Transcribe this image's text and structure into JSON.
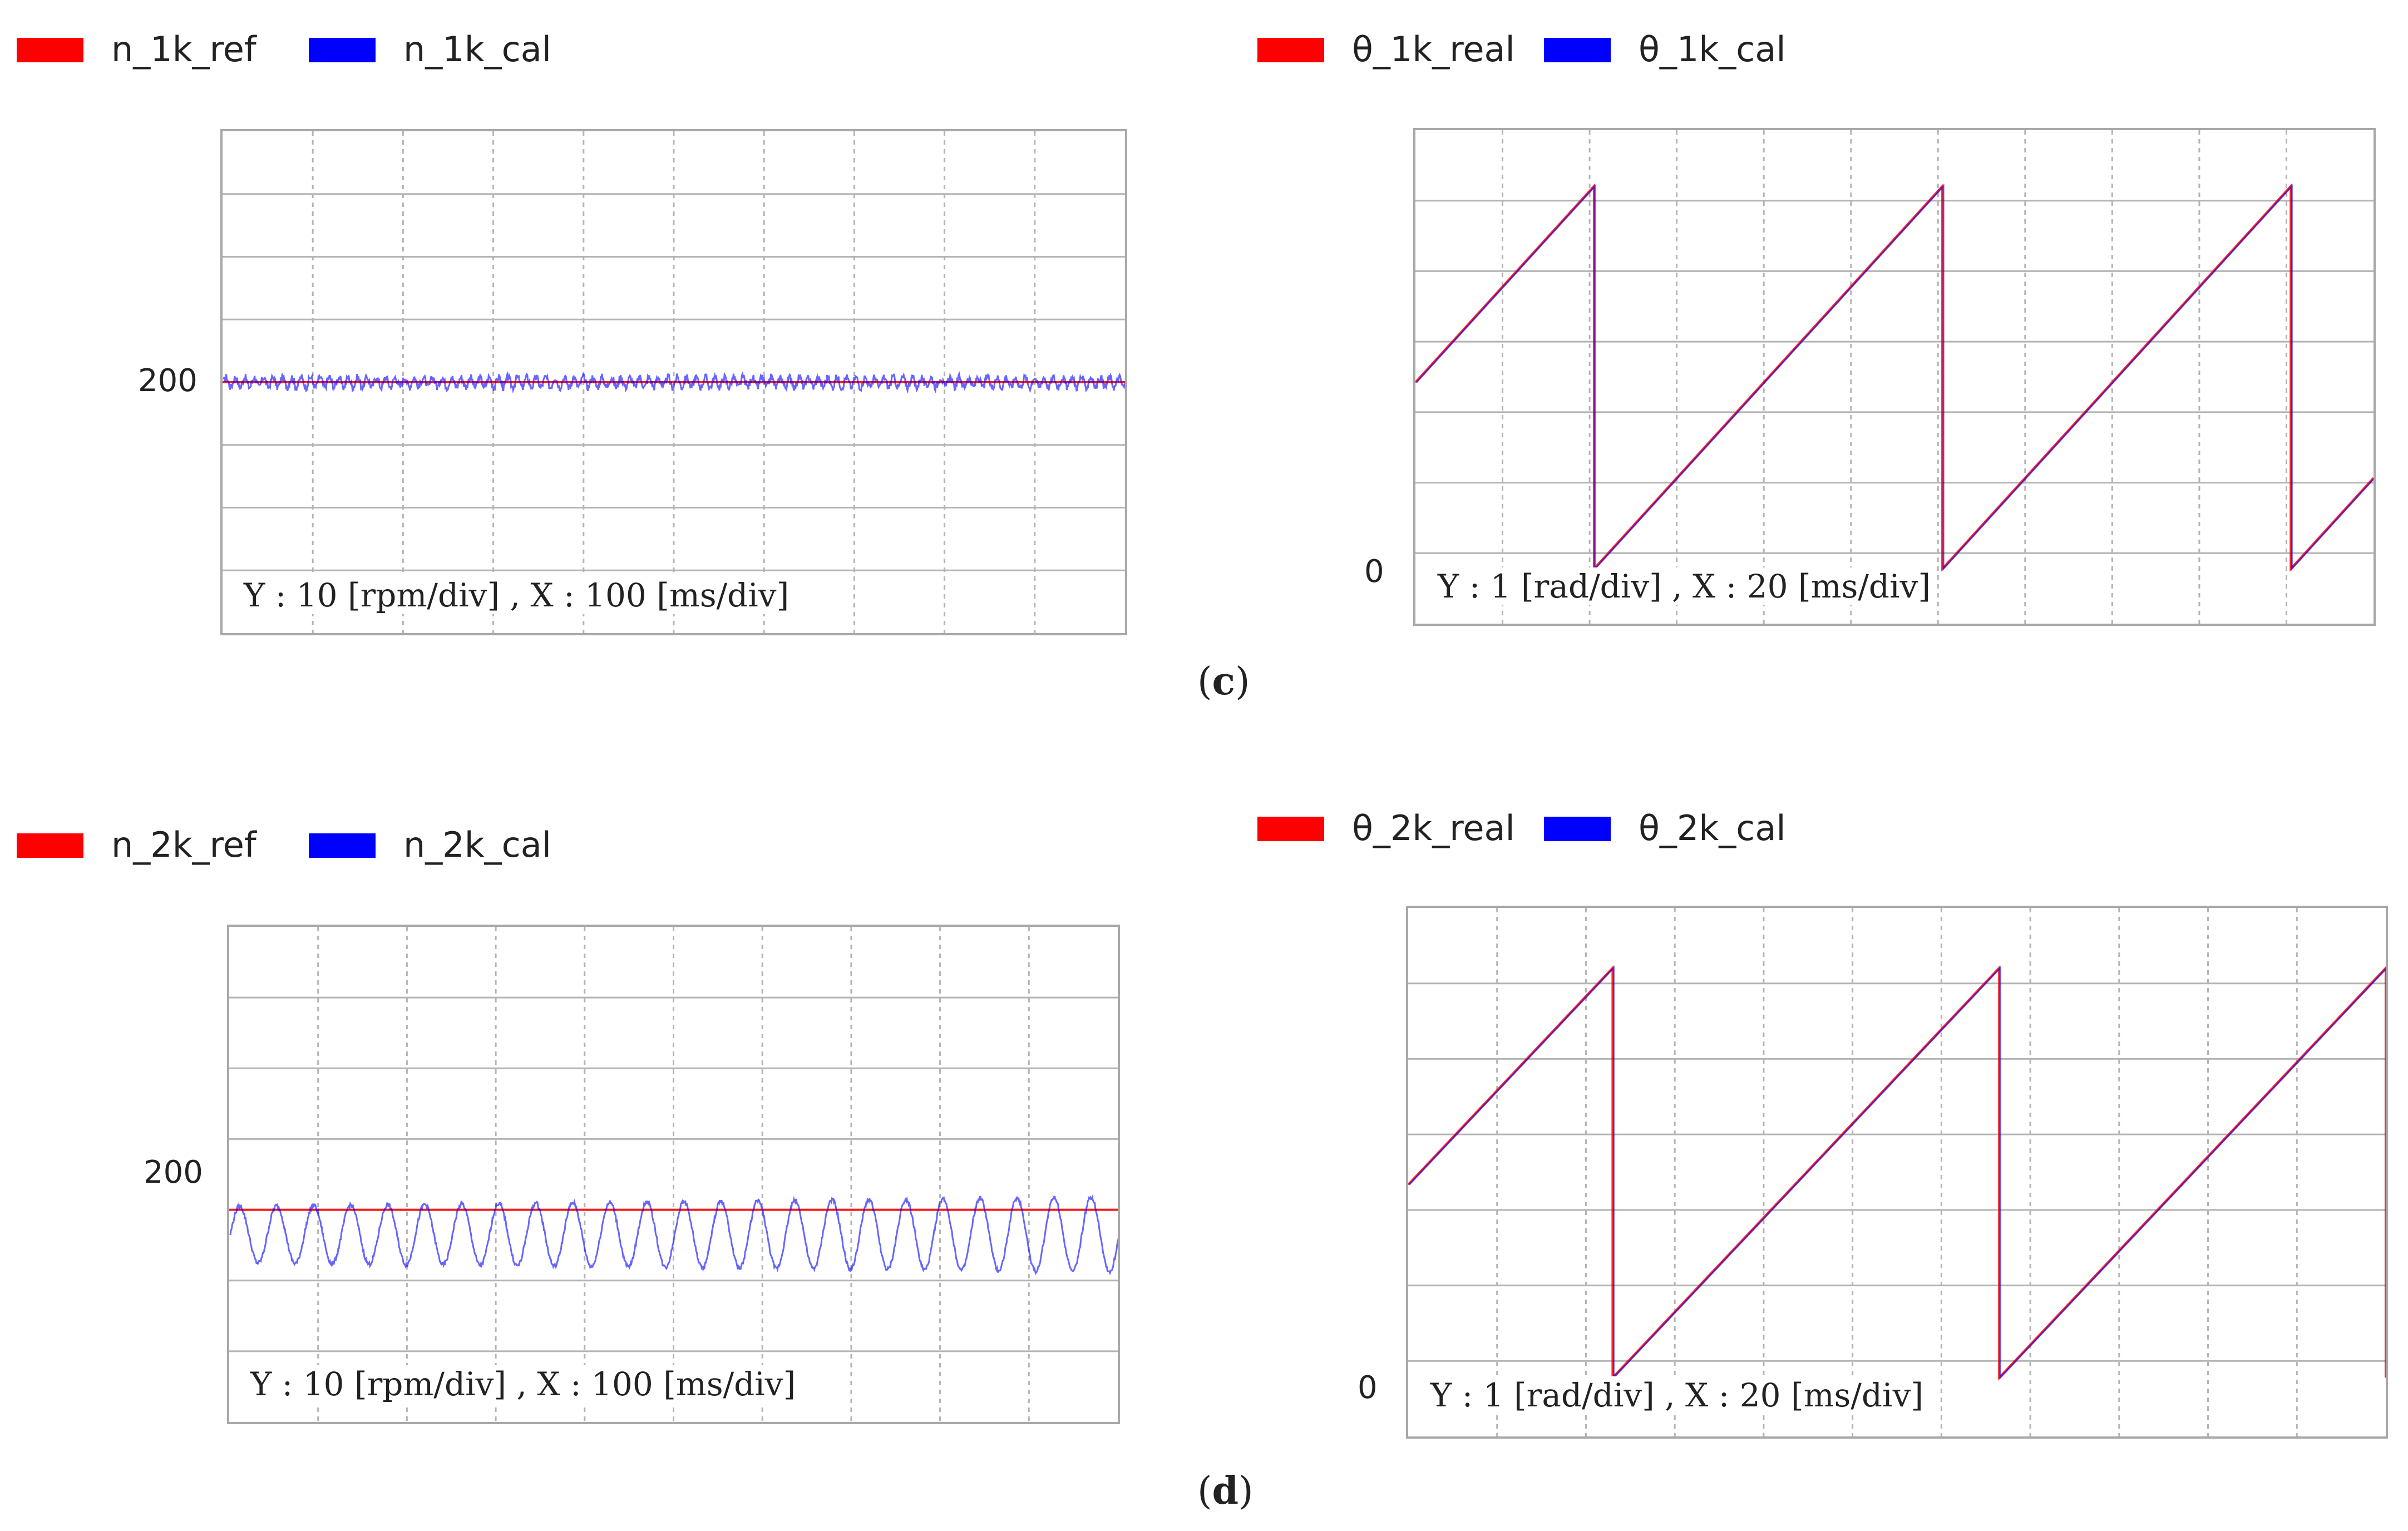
{
  "colors": {
    "ref": "#ff0000",
    "cal": "#0000ff",
    "grid": "#b4b4b4",
    "frame": "#a8a8a8"
  },
  "panels": {
    "c": {
      "caption_letter": "c",
      "speed": {
        "legend": [
          "n_1k_ref",
          "n_1k_cal"
        ],
        "y_label": "200",
        "scale": "Y :  10 [rpm/div] , X : 100 [ms/div]"
      },
      "angle": {
        "legend": [
          "θ_1k_real",
          "θ_1k_cal"
        ],
        "y_label": "0",
        "scale": "Y :  1 [rad/div] , X : 20 [ms/div]"
      }
    },
    "d": {
      "caption_letter": "d",
      "speed": {
        "legend": [
          "n_2k_ref",
          "n_2k_cal"
        ],
        "y_label": "200",
        "scale": "Y :  10 [rpm/div] , X : 100 [ms/div]"
      },
      "angle": {
        "legend": [
          "θ_2k_real",
          "θ_2k_cal"
        ],
        "y_label": "0",
        "scale": "Y :  1 [rad/div] , X : 20 [ms/div]"
      }
    }
  },
  "chart_data": [
    {
      "id": "c-speed",
      "type": "line",
      "title": "",
      "xlabel": "X : 100 [ms/div]",
      "ylabel": "Y : 10 [rpm/div]",
      "x_divisions": 10,
      "y_divisions": 8,
      "ylim": [
        160,
        240
      ],
      "y_tick": 200,
      "series": [
        {
          "name": "n_1k_ref",
          "kind": "constant",
          "value": 200
        },
        {
          "name": "n_1k_cal",
          "kind": "ripple",
          "mean": 200,
          "amp_start": 0.8,
          "amp_end": 0.8,
          "cycles": 96,
          "noise": 0.6
        }
      ]
    },
    {
      "id": "c-angle",
      "type": "line",
      "title": "",
      "xlabel": "X : 20 [ms/div]",
      "ylabel": "Y : 1 [rad/div]",
      "x_divisions": 11,
      "y_divisions": 7,
      "ylim": [
        -0.9,
        7.2
      ],
      "y_tick": 0,
      "series": [
        {
          "name": "θ_1k_real",
          "kind": "sawtooth",
          "period_div": 4.0,
          "start_div": 2.05,
          "drop_divs": [
            2.05,
            6.05,
            10.05
          ],
          "peak": 6.28
        },
        {
          "name": "θ_1k_cal",
          "kind": "sawtooth",
          "period_div": 4.0,
          "start_div": 2.05,
          "drop_divs": [
            2.05,
            6.05,
            10.05
          ],
          "peak": 6.28
        }
      ]
    },
    {
      "id": "d-speed",
      "type": "line",
      "title": "",
      "xlabel": "X : 100 [ms/div]",
      "ylabel": "Y : 10 [rpm/div]",
      "x_divisions": 10,
      "y_divisions": 7,
      "ylim": [
        170,
        240
      ],
      "y_tick": 200,
      "series": [
        {
          "name": "n_2k_ref",
          "kind": "constant",
          "value": 200
        },
        {
          "name": "n_2k_cal",
          "kind": "ripple",
          "mean": 196.5,
          "amp_start": 4.0,
          "amp_end": 5.3,
          "cycles": 24,
          "noise": 0.3
        }
      ]
    },
    {
      "id": "d-angle",
      "type": "line",
      "title": "",
      "xlabel": "X : 20 [ms/div]",
      "ylabel": "Y : 1 [rad/div]",
      "x_divisions": 11,
      "y_divisions": 7,
      "ylim": [
        -0.9,
        7.2
      ],
      "y_tick": 0,
      "series": [
        {
          "name": "θ_2k_real",
          "kind": "sawtooth",
          "period_div": 4.35,
          "start_div": 2.3,
          "drop_divs": [
            2.3,
            6.65,
            11.0
          ],
          "peak": 6.28
        },
        {
          "name": "θ_2k_cal",
          "kind": "sawtooth",
          "period_div": 4.35,
          "start_div": 2.3,
          "drop_divs": [
            2.3,
            6.65,
            11.0
          ],
          "peak": 6.28
        }
      ]
    }
  ]
}
